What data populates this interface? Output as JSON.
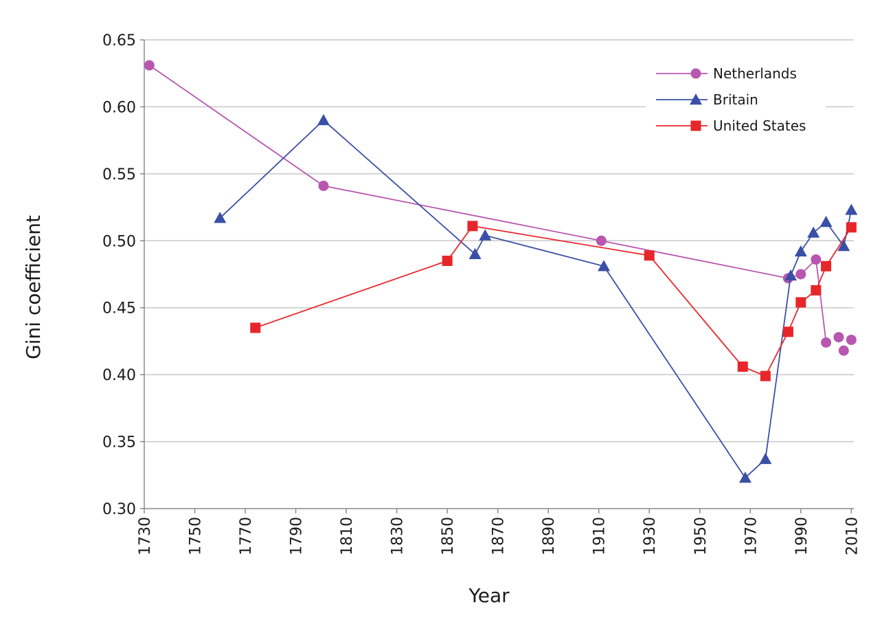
{
  "chart_data": {
    "type": "line",
    "title": "",
    "xlabel": "Year",
    "ylabel": "Gini coefficient",
    "xlim": [
      1730,
      2011
    ],
    "ylim": [
      0.3,
      0.65
    ],
    "x_ticks": [
      "1730",
      "1750",
      "1770",
      "1790",
      "1810",
      "1830",
      "1850",
      "1870",
      "1890",
      "1910",
      "1930",
      "1950",
      "1970",
      "1990",
      "2010"
    ],
    "y_ticks": [
      "0.30",
      "0.35",
      "0.40",
      "0.45",
      "0.50",
      "0.55",
      "0.60",
      "0.65"
    ],
    "grid": "horizontal",
    "legend_position": "top-right",
    "series": [
      {
        "name": "Netherlands",
        "color": "#b856b0",
        "marker": "circle",
        "points": [
          [
            1732,
            0.631
          ],
          [
            1801,
            0.541
          ],
          [
            1911,
            0.5
          ],
          [
            1985,
            0.472
          ],
          [
            1990,
            0.475
          ],
          [
            1996,
            0.486
          ],
          [
            2000,
            0.424
          ]
        ],
        "extra_points": [
          [
            2005,
            0.428
          ],
          [
            2007,
            0.418
          ],
          [
            2010,
            0.426
          ]
        ]
      },
      {
        "name": "Britain",
        "color": "#3a4fa5",
        "marker": "triangle",
        "points": [
          [
            1760,
            0.517
          ],
          [
            1801,
            0.59
          ],
          [
            1861,
            0.49
          ],
          [
            1865,
            0.504
          ],
          [
            1912,
            0.481
          ],
          [
            1968,
            0.323
          ],
          [
            1976,
            0.337
          ],
          [
            1986,
            0.474
          ],
          [
            1990,
            0.492
          ],
          [
            1995,
            0.506
          ],
          [
            2000,
            0.514
          ],
          [
            2007,
            0.496
          ],
          [
            2010,
            0.523
          ]
        ]
      },
      {
        "name": "United States",
        "color": "#e8262a",
        "marker": "square",
        "points": [
          [
            1774,
            0.435
          ],
          [
            1850,
            0.485
          ],
          [
            1860,
            0.511
          ],
          [
            1930,
            0.489
          ],
          [
            1967,
            0.406
          ],
          [
            1976,
            0.399
          ],
          [
            1985,
            0.432
          ],
          [
            1990,
            0.454
          ],
          [
            1996,
            0.463
          ],
          [
            2000,
            0.481
          ],
          [
            2010,
            0.51
          ]
        ]
      }
    ]
  }
}
